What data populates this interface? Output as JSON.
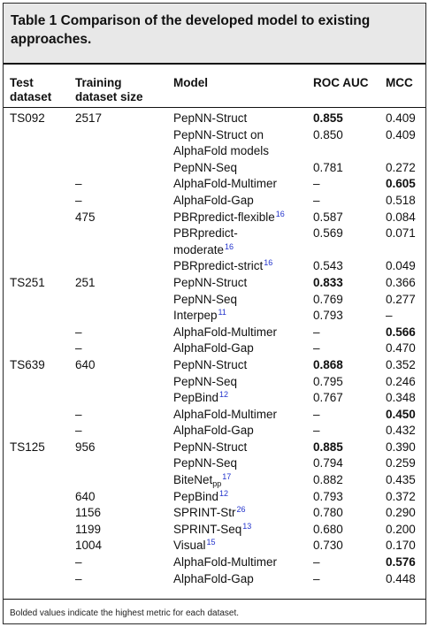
{
  "caption": "Table 1 Comparison of the developed model to existing approaches.",
  "headers": {
    "test_dataset": [
      "Test",
      "dataset"
    ],
    "training_size": [
      "Training",
      "dataset size"
    ],
    "model": "Model",
    "roc_auc": "ROC AUC",
    "mcc": "MCC"
  },
  "rows": [
    {
      "test": "TS092",
      "train": "2517",
      "model": "PepNN-Struct",
      "ref": "",
      "roc": "0.855",
      "roc_bold": true,
      "mcc": "0.409",
      "mcc_bold": false
    },
    {
      "test": "",
      "train": "",
      "model": "PepNN-Struct on",
      "ref": "",
      "roc": "0.850",
      "roc_bold": false,
      "mcc": "0.409",
      "mcc_bold": false
    },
    {
      "test": "",
      "train": "",
      "model": "AlphaFold models",
      "ref": "",
      "roc": "",
      "roc_bold": false,
      "mcc": "",
      "mcc_bold": false
    },
    {
      "test": "",
      "train": "",
      "model": "PepNN-Seq",
      "ref": "",
      "roc": "0.781",
      "roc_bold": false,
      "mcc": "0.272",
      "mcc_bold": false
    },
    {
      "test": "",
      "train": "–",
      "model": "AlphaFold-Multimer",
      "ref": "",
      "roc": "–",
      "roc_bold": false,
      "mcc": "0.605",
      "mcc_bold": true
    },
    {
      "test": "",
      "train": "–",
      "model": "AlphaFold-Gap",
      "ref": "",
      "roc": "–",
      "roc_bold": false,
      "mcc": "0.518",
      "mcc_bold": false
    },
    {
      "test": "",
      "train": "475",
      "model": "PBRpredict-flexible",
      "ref": "16",
      "roc": "0.587",
      "roc_bold": false,
      "mcc": "0.084",
      "mcc_bold": false
    },
    {
      "test": "",
      "train": "",
      "model": "PBRpredict-",
      "ref": "",
      "roc": "0.569",
      "roc_bold": false,
      "mcc": "0.071",
      "mcc_bold": false
    },
    {
      "test": "",
      "train": "",
      "model": "moderate",
      "ref": "16",
      "roc": "",
      "roc_bold": false,
      "mcc": "",
      "mcc_bold": false
    },
    {
      "test": "",
      "train": "",
      "model": "PBRpredict-strict",
      "ref": "16",
      "roc": "0.543",
      "roc_bold": false,
      "mcc": "0.049",
      "mcc_bold": false
    },
    {
      "test": "TS251",
      "train": "251",
      "model": "PepNN-Struct",
      "ref": "",
      "roc": "0.833",
      "roc_bold": true,
      "mcc": "0.366",
      "mcc_bold": false
    },
    {
      "test": "",
      "train": "",
      "model": "PepNN-Seq",
      "ref": "",
      "roc": "0.769",
      "roc_bold": false,
      "mcc": "0.277",
      "mcc_bold": false
    },
    {
      "test": "",
      "train": "",
      "model": "Interpep",
      "ref": "11",
      "roc": "0.793",
      "roc_bold": false,
      "mcc": "–",
      "mcc_bold": false
    },
    {
      "test": "",
      "train": "–",
      "model": "AlphaFold-Multimer",
      "ref": "",
      "roc": "–",
      "roc_bold": false,
      "mcc": "0.566",
      "mcc_bold": true
    },
    {
      "test": "",
      "train": "–",
      "model": "AlphaFold-Gap",
      "ref": "",
      "roc": "–",
      "roc_bold": false,
      "mcc": "0.470",
      "mcc_bold": false
    },
    {
      "test": "TS639",
      "train": "640",
      "model": "PepNN-Struct",
      "ref": "",
      "roc": "0.868",
      "roc_bold": true,
      "mcc": "0.352",
      "mcc_bold": false
    },
    {
      "test": "",
      "train": "",
      "model": "PepNN-Seq",
      "ref": "",
      "roc": "0.795",
      "roc_bold": false,
      "mcc": "0.246",
      "mcc_bold": false
    },
    {
      "test": "",
      "train": "",
      "model": "PepBind",
      "ref": "12",
      "roc": "0.767",
      "roc_bold": false,
      "mcc": "0.348",
      "mcc_bold": false
    },
    {
      "test": "",
      "train": "–",
      "model": "AlphaFold-Multimer",
      "ref": "",
      "roc": "–",
      "roc_bold": false,
      "mcc": "0.450",
      "mcc_bold": true
    },
    {
      "test": "",
      "train": "–",
      "model": "AlphaFold-Gap",
      "ref": "",
      "roc": "–",
      "roc_bold": false,
      "mcc": "0.432",
      "mcc_bold": false
    },
    {
      "test": "TS125",
      "train": "956",
      "model": "PepNN-Struct",
      "ref": "",
      "roc": "0.885",
      "roc_bold": true,
      "mcc": "0.390",
      "mcc_bold": false
    },
    {
      "test": "",
      "train": "",
      "model": "PepNN-Seq",
      "ref": "",
      "roc": "0.794",
      "roc_bold": false,
      "mcc": "0.259",
      "mcc_bold": false
    },
    {
      "test": "",
      "train": "",
      "model": "BiteNet",
      "sub": "pp",
      "ref": "17",
      "roc": "0.882",
      "roc_bold": false,
      "mcc": "0.435",
      "mcc_bold": false
    },
    {
      "test": "",
      "train": "640",
      "model": "PepBind",
      "ref": "12",
      "roc": "0.793",
      "roc_bold": false,
      "mcc": "0.372",
      "mcc_bold": false
    },
    {
      "test": "",
      "train": "1156",
      "model": "SPRINT-Str",
      "ref": "26",
      "roc": "0.780",
      "roc_bold": false,
      "mcc": "0.290",
      "mcc_bold": false
    },
    {
      "test": "",
      "train": "1199",
      "model": "SPRINT-Seq",
      "ref": "13",
      "roc": "0.680",
      "roc_bold": false,
      "mcc": "0.200",
      "mcc_bold": false
    },
    {
      "test": "",
      "train": "1004",
      "model": "Visual",
      "ref": "15",
      "roc": "0.730",
      "roc_bold": false,
      "mcc": "0.170",
      "mcc_bold": false
    },
    {
      "test": "",
      "train": "–",
      "model": "AlphaFold-Multimer",
      "ref": "",
      "roc": "–",
      "roc_bold": false,
      "mcc": "0.576",
      "mcc_bold": true
    },
    {
      "test": "",
      "train": "–",
      "model": "AlphaFold-Gap",
      "ref": "",
      "roc": "–",
      "roc_bold": false,
      "mcc": "0.448",
      "mcc_bold": false
    }
  ],
  "footnote": "Bolded values indicate the highest metric for each dataset."
}
